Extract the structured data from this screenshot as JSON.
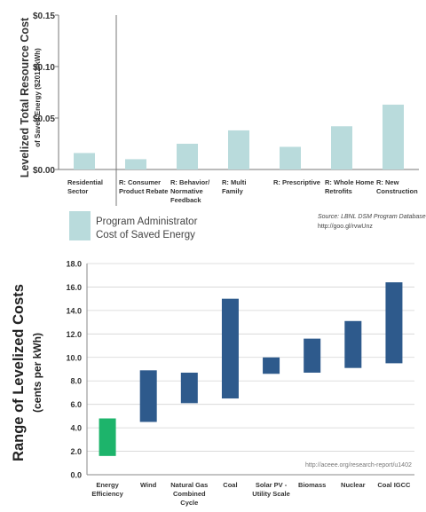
{
  "chart_data": [
    {
      "type": "bar",
      "ylabel_main": "Levelized Total Resource Cost",
      "ylabel_sub": "of Saved Energy ($2012/kWh)",
      "ylim": [
        0,
        0.15
      ],
      "yticks": [
        "$0.00",
        "$0.05",
        "$0.10",
        "$0.15"
      ],
      "ytick_values": [
        0,
        0.05,
        0.1,
        0.15
      ],
      "categories": [
        [
          "Residential",
          "Sector"
        ],
        [
          "R: Consumer",
          "Product Rebate"
        ],
        [
          "R: Behavior/",
          "Normative",
          "Feedback"
        ],
        [
          "R: Multi",
          "Family"
        ],
        [
          "R: Prescriptive"
        ],
        [
          "R: Whole Home",
          "Retrofits"
        ],
        [
          "R: New",
          "Construction"
        ]
      ],
      "values": [
        0.016,
        0.01,
        0.025,
        0.038,
        0.022,
        0.042,
        0.063
      ],
      "bar_color": "#b9dbdc",
      "legend": [
        "Program Administrator",
        "Cost of Saved Energy"
      ],
      "source": "Source: LBNL DSM Program Database",
      "source_url": "http://goo.gl/rvwUnz"
    },
    {
      "type": "range-bar",
      "ylabel_main": "Range of Levelized Costs",
      "ylabel_sub": "(cents per kWh)",
      "ylim": [
        0,
        18
      ],
      "yticks": [
        "0.0",
        "2.0",
        "4.0",
        "6.0",
        "8.0",
        "10.0",
        "12.0",
        "14.0",
        "16.0",
        "18.0"
      ],
      "ytick_values": [
        0,
        2,
        4,
        6,
        8,
        10,
        12,
        14,
        16,
        18
      ],
      "categories": [
        [
          "Energy",
          "Efficiency"
        ],
        [
          "Wind"
        ],
        [
          "Natural Gas",
          "Combined",
          "Cycle"
        ],
        [
          "Coal"
        ],
        [
          "Solar PV -",
          "Utility Scale"
        ],
        [
          "Biomass"
        ],
        [
          "Nuclear"
        ],
        [
          "Coal IGCC"
        ]
      ],
      "ranges": [
        [
          1.6,
          4.8
        ],
        [
          4.5,
          8.9
        ],
        [
          6.1,
          8.7
        ],
        [
          6.5,
          15.0
        ],
        [
          8.6,
          10.0
        ],
        [
          8.7,
          11.6
        ],
        [
          9.1,
          13.1
        ],
        [
          9.5,
          16.4
        ]
      ],
      "colors": [
        "#1db46b",
        "#2e5a8c",
        "#2e5a8c",
        "#2e5a8c",
        "#2e5a8c",
        "#2e5a8c",
        "#2e5a8c",
        "#2e5a8c"
      ],
      "source_url": "http://aceee.org/research-report/u1402"
    }
  ]
}
